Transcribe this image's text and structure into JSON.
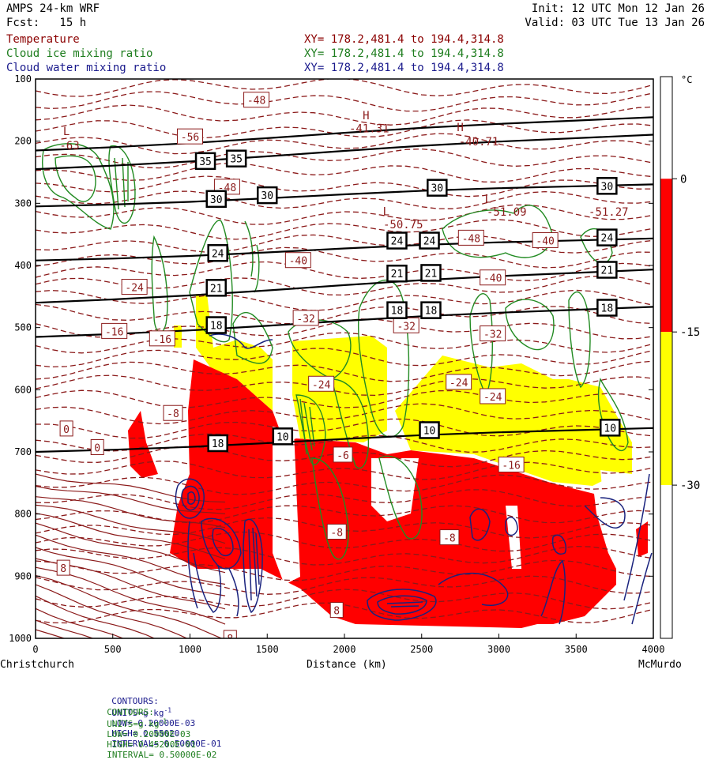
{
  "header": {
    "model": "AMPS 24-km WRF",
    "forecast": "Fcst:   15 h",
    "init": "Init: 12 UTC Mon 12 Jan 26",
    "valid": "Valid: 03 UTC Tue 13 Jan 26"
  },
  "fields": [
    {
      "name": "Temperature",
      "xy": "XY= 178.2,481.4 to 194.4,314.8",
      "color": "#8b0000"
    },
    {
      "name": "Cloud ice mixing ratio",
      "xy": "XY= 178.2,481.4 to 194.4,314.8",
      "color": "#1e7d1e"
    },
    {
      "name": "Cloud water mixing ratio",
      "xy": "XY= 178.2,481.4 to 194.4,314.8",
      "color": "#1a1a8c"
    }
  ],
  "chart_data": {
    "type": "cross-section",
    "xlabel": "Distance (km)",
    "x_ticks": [
      "0",
      "500",
      "1000",
      "1500",
      "2000",
      "2500",
      "3000",
      "3500",
      "4000"
    ],
    "xlim": [
      0,
      4000
    ],
    "x_endpoints": {
      "left": "Christchurch",
      "right": "McMurdo"
    },
    "y_ticks": [
      "100",
      "200",
      "300",
      "400",
      "500",
      "600",
      "700",
      "800",
      "900",
      "1000"
    ],
    "ylim": [
      1000,
      100
    ],
    "colorbar": {
      "unit": "°C",
      "ticks": [
        "0",
        "-15",
        "-30"
      ],
      "bands": [
        {
          "from": 0,
          "to": 10,
          "color": "#ffffff"
        },
        {
          "from": -15,
          "to": 0,
          "color": "#ff0000"
        },
        {
          "from": -30,
          "to": -15,
          "color": "#ffff00"
        },
        {
          "from": -45,
          "to": -30,
          "color": "#ffffff"
        }
      ]
    },
    "theta_lines": [
      {
        "label": "35",
        "y0": 215,
        "y4000": 160
      },
      {
        "label": "35",
        "y0": 245,
        "y4000": 188
      },
      {
        "label": "30",
        "y0": 305,
        "y4000": 268
      },
      {
        "label": "24",
        "y0": 392,
        "y4000": 355
      },
      {
        "label": "21",
        "y0": 460,
        "y4000": 405
      },
      {
        "label": "18",
        "y0": 515,
        "y4000": 465
      },
      {
        "label": "10",
        "y0": 700,
        "y4000": 660
      }
    ],
    "theta_labels": [
      {
        "text": "35",
        "x": 1100,
        "p": 232
      },
      {
        "text": "35",
        "x": 1300,
        "p": 228
      },
      {
        "text": "30",
        "x": 1170,
        "p": 293
      },
      {
        "text": "30",
        "x": 1500,
        "p": 287
      },
      {
        "text": "30",
        "x": 2600,
        "p": 275
      },
      {
        "text": "30",
        "x": 3700,
        "p": 272
      },
      {
        "text": "24",
        "x": 1180,
        "p": 380
      },
      {
        "text": "24",
        "x": 2340,
        "p": 360
      },
      {
        "text": "24",
        "x": 2550,
        "p": 360
      },
      {
        "text": "24",
        "x": 3700,
        "p": 355
      },
      {
        "text": "21",
        "x": 1170,
        "p": 436
      },
      {
        "text": "21",
        "x": 2340,
        "p": 413
      },
      {
        "text": "21",
        "x": 2560,
        "p": 412
      },
      {
        "text": "21",
        "x": 3700,
        "p": 407
      },
      {
        "text": "18",
        "x": 1170,
        "p": 496
      },
      {
        "text": "18",
        "x": 2340,
        "p": 472
      },
      {
        "text": "18",
        "x": 2560,
        "p": 472
      },
      {
        "text": "18",
        "x": 3700,
        "p": 468
      },
      {
        "text": "18",
        "x": 1180,
        "p": 686
      },
      {
        "text": "10",
        "x": 1600,
        "p": 675
      },
      {
        "text": "10",
        "x": 2550,
        "p": 665
      },
      {
        "text": "10",
        "x": 3720,
        "p": 661
      }
    ],
    "temp_labels": [
      {
        "text": "-48",
        "x": 1430,
        "p": 134
      },
      {
        "text": "-56",
        "x": 1000,
        "p": 193
      },
      {
        "text": "-48",
        "x": 1240,
        "p": 274
      },
      {
        "text": "-48",
        "x": 2820,
        "p": 356
      },
      {
        "text": "-40",
        "x": 3300,
        "p": 360
      },
      {
        "text": "-40",
        "x": 1700,
        "p": 392
      },
      {
        "text": "-40",
        "x": 2960,
        "p": 420
      },
      {
        "text": "-24",
        "x": 640,
        "p": 435
      },
      {
        "text": "-32",
        "x": 1750,
        "p": 485
      },
      {
        "text": "-32",
        "x": 2400,
        "p": 497
      },
      {
        "text": "-32",
        "x": 2960,
        "p": 510
      },
      {
        "text": "-16",
        "x": 510,
        "p": 506
      },
      {
        "text": "-16",
        "x": 820,
        "p": 518
      },
      {
        "text": "-24",
        "x": 1850,
        "p": 591
      },
      {
        "text": "-24",
        "x": 2740,
        "p": 588
      },
      {
        "text": "-24",
        "x": 2960,
        "p": 611
      },
      {
        "text": "-8",
        "x": 890,
        "p": 638
      },
      {
        "text": "0",
        "x": 200,
        "p": 663
      },
      {
        "text": "0",
        "x": 400,
        "p": 693
      },
      {
        "text": "-6",
        "x": 1990,
        "p": 705
      },
      {
        "text": "-16",
        "x": 3080,
        "p": 721
      },
      {
        "text": "-8",
        "x": 1950,
        "p": 829
      },
      {
        "text": "-8",
        "x": 2680,
        "p": 838
      },
      {
        "text": "8",
        "x": 180,
        "p": 887
      },
      {
        "text": "8",
        "x": 1950,
        "p": 955
      },
      {
        "text": "8",
        "x": 1260,
        "p": 1000
      }
    ],
    "hl_labels": [
      {
        "text": "L",
        "x": 200,
        "p": 190
      },
      {
        "text": "-63",
        "x": 220,
        "p": 213
      },
      {
        "text": "H",
        "x": 2140,
        "p": 165
      },
      {
        "text": "-41.31",
        "x": 2160,
        "p": 186
      },
      {
        "text": "H",
        "x": 2750,
        "p": 184
      },
      {
        "text": "-40.71",
        "x": 2870,
        "p": 207
      },
      {
        "text": "L",
        "x": 2270,
        "p": 319
      },
      {
        "text": "-50.75",
        "x": 2380,
        "p": 340
      },
      {
        "text": "L",
        "x": 2930,
        "p": 299
      },
      {
        "text": "-51.09",
        "x": 3050,
        "p": 320
      },
      {
        "text": "-51.27",
        "x": 3710,
        "p": 320
      }
    ]
  },
  "footer": {
    "line1": {
      "label": "CONTOURS:",
      "units": "UNITS=g kg",
      "exp": "-1",
      "low": "LOW= 0.20000E-03",
      "high": "HIGH= 0.55020",
      "interval": "INTERVAL= 0.50000E-01",
      "color": "#1a1a8c"
    },
    "line2": {
      "label": "CONTOURS:",
      "units": "UNITS=g kg",
      "exp": "-1",
      "low": "LOW= 0.20000E-03",
      "high": "HIGH= 0.45200E-01",
      "interval": "INTERVAL= 0.50000E-02",
      "color": "#1e7d1e"
    }
  }
}
